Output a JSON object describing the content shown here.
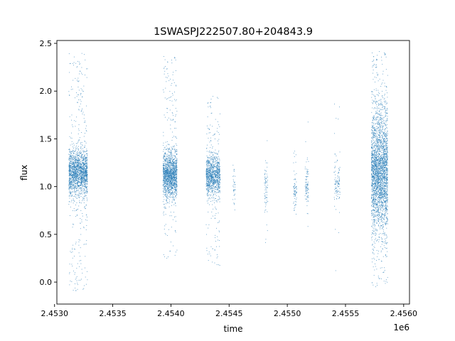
{
  "chart_data": {
    "type": "scatter",
    "title": "1SWASPJ222507.80+204843.9",
    "xlabel": "time",
    "ylabel": "flux",
    "x_offset_label": "1e6",
    "xlim": [
      2.45302,
      2.45605
    ],
    "ylim": [
      -0.23,
      2.53
    ],
    "x_ticks": [
      {
        "value": 2.453,
        "label": "2.4530"
      },
      {
        "value": 2.4535,
        "label": "2.4535"
      },
      {
        "value": 2.454,
        "label": "2.4540"
      },
      {
        "value": 2.4545,
        "label": "2.4545"
      },
      {
        "value": 2.455,
        "label": "2.4550"
      },
      {
        "value": 2.4555,
        "label": "2.4555"
      },
      {
        "value": 2.456,
        "label": "2.4560"
      }
    ],
    "y_ticks": [
      {
        "value": 0.0,
        "label": "0.0"
      },
      {
        "value": 0.5,
        "label": "0.5"
      },
      {
        "value": 1.0,
        "label": "1.0"
      },
      {
        "value": 1.5,
        "label": "1.5"
      },
      {
        "value": 2.0,
        "label": "2.0"
      },
      {
        "value": 2.5,
        "label": "2.5"
      }
    ],
    "grid": false,
    "point_color": "#1f77b4",
    "clusters": [
      {
        "x_start": 2.45312,
        "x_end": 2.45328,
        "y_center": 1.15,
        "y_spread": 0.12,
        "y_min": -0.1,
        "y_max": 2.4,
        "density": 1.0
      },
      {
        "x_start": 2.45393,
        "x_end": 2.45405,
        "y_center": 1.12,
        "y_spread": 0.12,
        "y_min": 0.25,
        "y_max": 2.38,
        "density": 0.85
      },
      {
        "x_start": 2.4543,
        "x_end": 2.45442,
        "y_center": 1.12,
        "y_spread": 0.1,
        "y_min": 0.14,
        "y_max": 1.95,
        "density": 0.6
      },
      {
        "x_start": 2.45453,
        "x_end": 2.45455,
        "y_center": 1.0,
        "y_spread": 0.1,
        "y_min": 0.75,
        "y_max": 1.25,
        "density": 0.02
      },
      {
        "x_start": 2.4548,
        "x_end": 2.45483,
        "y_center": 1.0,
        "y_spread": 0.15,
        "y_min": 0.4,
        "y_max": 1.5,
        "density": 0.04
      },
      {
        "x_start": 2.45505,
        "x_end": 2.45508,
        "y_center": 0.97,
        "y_spread": 0.1,
        "y_min": 0.65,
        "y_max": 1.4,
        "density": 0.04
      },
      {
        "x_start": 2.45515,
        "x_end": 2.45518,
        "y_center": 1.0,
        "y_spread": 0.12,
        "y_min": 0.3,
        "y_max": 1.7,
        "density": 0.05
      },
      {
        "x_start": 2.4554,
        "x_end": 2.45545,
        "y_center": 1.05,
        "y_spread": 0.12,
        "y_min": 0.12,
        "y_max": 1.88,
        "density": 0.06
      },
      {
        "x_start": 2.45572,
        "x_end": 2.45586,
        "y_center": 1.15,
        "y_spread": 0.3,
        "y_min": -0.05,
        "y_max": 2.42,
        "density": 1.6
      }
    ]
  }
}
